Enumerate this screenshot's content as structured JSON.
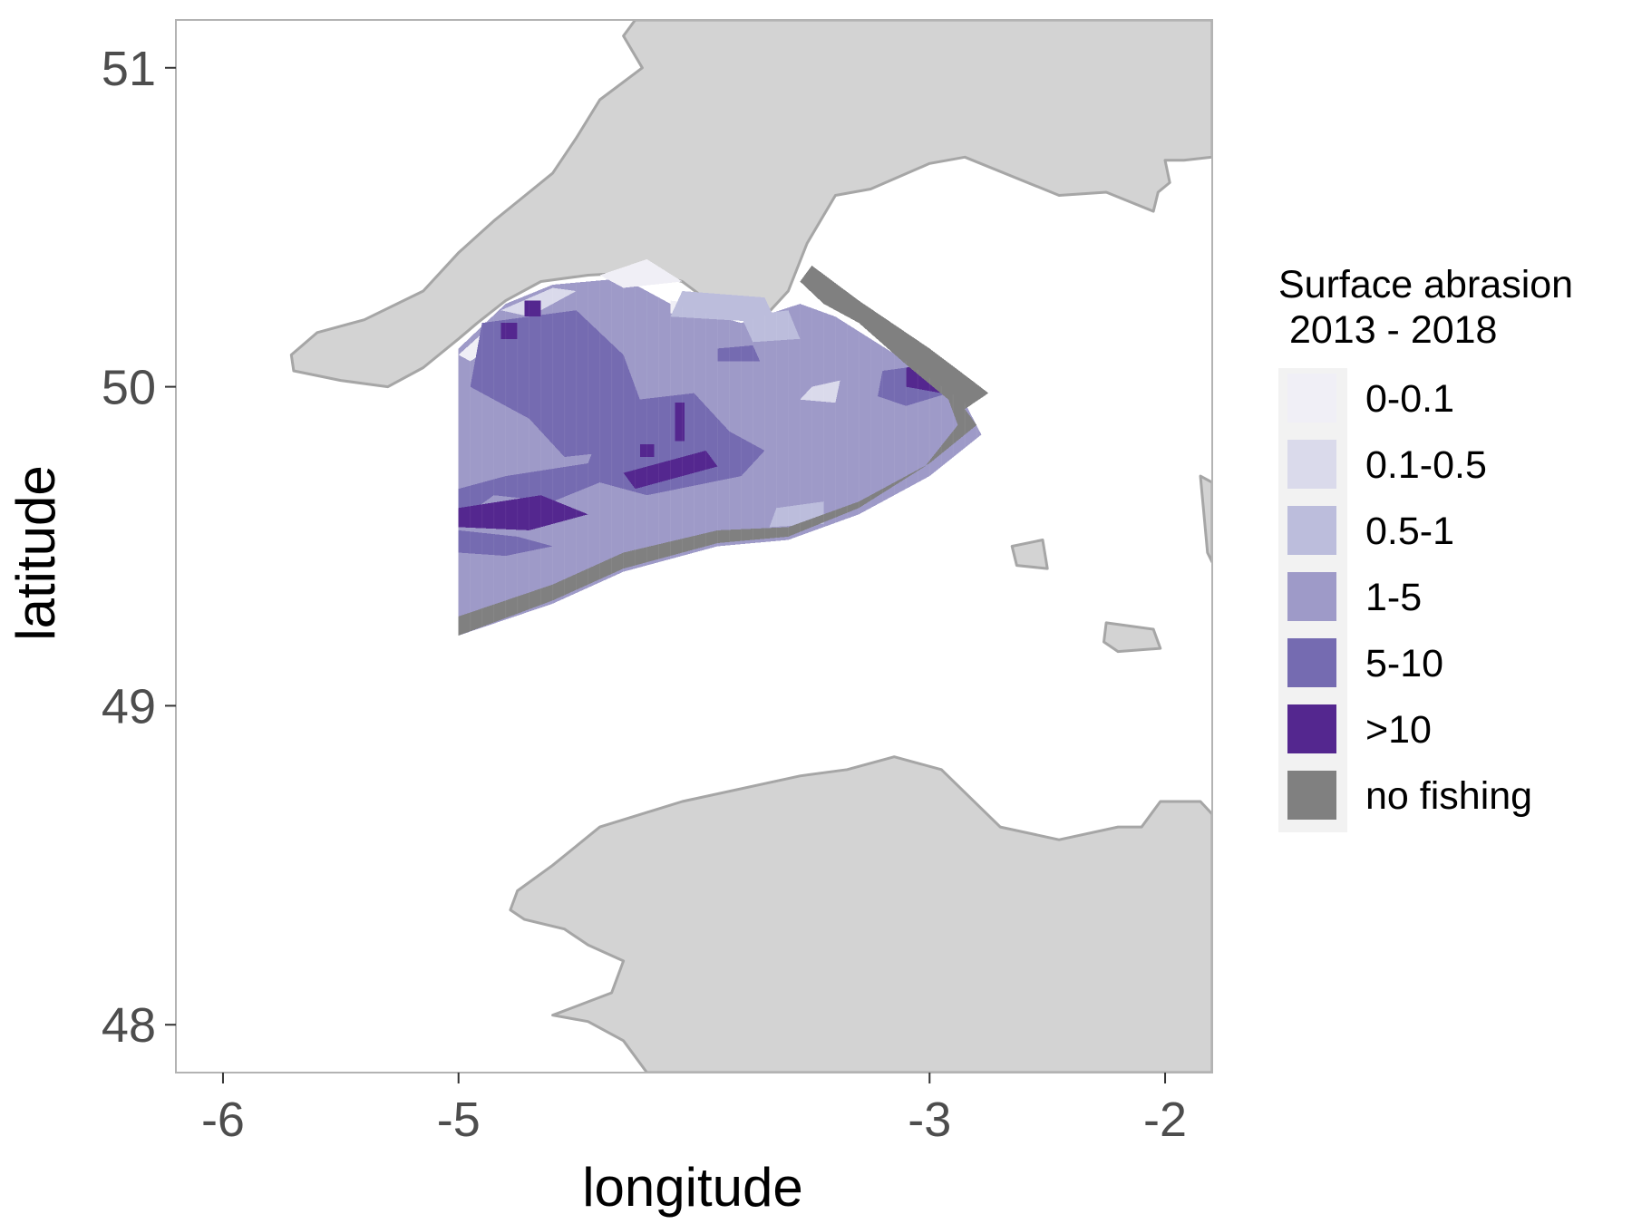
{
  "chart_data": {
    "type": "heatmap",
    "map": true,
    "xlabel": "longitude",
    "ylabel": "latitude",
    "xlim": [
      -6.2,
      -1.8
    ],
    "ylim": [
      47.85,
      51.15
    ],
    "x_ticks": [
      {
        "value": -6,
        "label": "-6"
      },
      {
        "value": -5,
        "label": "-5"
      },
      {
        "value": -3,
        "label": "-3"
      },
      {
        "value": -2,
        "label": "-2"
      }
    ],
    "y_ticks": [
      {
        "value": 51,
        "label": "51"
      },
      {
        "value": 50,
        "label": "50"
      },
      {
        "value": 49,
        "label": "49"
      },
      {
        "value": 48,
        "label": "48"
      }
    ],
    "grid": false,
    "land_color": "#d3d3d3",
    "coast_color": "#a6a6a6",
    "legend": {
      "position": "right",
      "title_line1": "Surface abrasion",
      "title_line2": " 2013 - 2018",
      "classes": [
        {
          "label": "0-0.1",
          "color": "#f0eff6"
        },
        {
          "label": "0.1-0.5",
          "color": "#dadaeb"
        },
        {
          "label": "0.5-1",
          "color": "#bcbddc"
        },
        {
          "label": "1-5",
          "color": "#9e9ac8"
        },
        {
          "label": "5-10",
          "color": "#756bb1"
        },
        {
          "label": ">10",
          "color": "#54278f"
        },
        {
          "label": "no fishing",
          "color": "#808080"
        }
      ]
    },
    "grid_cell": {
      "dlon": 0.05,
      "dlat": 0.05
    },
    "fishing_region": {
      "polygon": [
        [
          -5.0,
          50.12
        ],
        [
          -4.8,
          50.26
        ],
        [
          -4.6,
          50.32
        ],
        [
          -4.3,
          50.34
        ],
        [
          -4.1,
          50.26
        ],
        [
          -3.8,
          50.2
        ],
        [
          -3.55,
          50.26
        ],
        [
          -3.4,
          50.22
        ],
        [
          -3.1,
          50.08
        ],
        [
          -2.85,
          49.95
        ],
        [
          -2.78,
          49.85
        ],
        [
          -3.0,
          49.72
        ],
        [
          -3.3,
          49.6
        ],
        [
          -3.6,
          49.52
        ],
        [
          -3.9,
          49.5
        ],
        [
          -4.3,
          49.42
        ],
        [
          -4.6,
          49.32
        ],
        [
          -5.0,
          49.22
        ]
      ],
      "base_class": "1-5",
      "patches": [
        {
          "class": "0-0.1",
          "polygon": [
            [
              -4.4,
              50.35
            ],
            [
              -4.2,
              50.4
            ],
            [
              -4.05,
              50.33
            ],
            [
              -4.3,
              50.31
            ]
          ]
        },
        {
          "class": "0-0.1",
          "polygon": [
            [
              -4.1,
              50.27
            ],
            [
              -3.85,
              50.25
            ],
            [
              -3.9,
              50.22
            ],
            [
              -4.1,
              50.23
            ]
          ]
        },
        {
          "class": "0-0.1",
          "polygon": [
            [
              -5.0,
              50.1
            ],
            [
              -4.85,
              50.2
            ],
            [
              -4.8,
              50.15
            ],
            [
              -4.95,
              50.08
            ]
          ]
        },
        {
          "class": "0.1-0.5",
          "polygon": [
            [
              -4.82,
              50.24
            ],
            [
              -4.6,
              50.31
            ],
            [
              -4.5,
              50.3
            ],
            [
              -4.7,
              50.22
            ]
          ]
        },
        {
          "class": "0.1-0.5",
          "polygon": [
            [
              -3.5,
              50.0
            ],
            [
              -3.38,
              50.02
            ],
            [
              -3.4,
              49.95
            ],
            [
              -3.55,
              49.96
            ]
          ]
        },
        {
          "class": "0.5-1",
          "polygon": [
            [
              -4.05,
              50.3
            ],
            [
              -3.7,
              50.28
            ],
            [
              -3.65,
              50.2
            ],
            [
              -4.1,
              50.22
            ]
          ]
        },
        {
          "class": "0.5-1",
          "polygon": [
            [
              -3.8,
              50.22
            ],
            [
              -3.6,
              50.24
            ],
            [
              -3.55,
              50.15
            ],
            [
              -3.75,
              50.14
            ]
          ]
        },
        {
          "class": "0.5-1",
          "polygon": [
            [
              -3.65,
              49.62
            ],
            [
              -3.45,
              49.64
            ],
            [
              -3.45,
              49.57
            ],
            [
              -3.68,
              49.56
            ]
          ]
        },
        {
          "class": "5-10",
          "polygon": [
            [
              -4.9,
              50.2
            ],
            [
              -4.5,
              50.24
            ],
            [
              -4.3,
              50.1
            ],
            [
              -4.2,
              49.9
            ],
            [
              -4.3,
              49.8
            ],
            [
              -4.55,
              49.78
            ],
            [
              -4.7,
              49.9
            ],
            [
              -4.95,
              50.0
            ]
          ]
        },
        {
          "class": "5-10",
          "polygon": [
            [
              -4.35,
              49.95
            ],
            [
              -4.0,
              49.98
            ],
            [
              -3.85,
              49.86
            ],
            [
              -3.7,
              49.8
            ],
            [
              -3.8,
              49.72
            ],
            [
              -4.2,
              49.66
            ],
            [
              -4.4,
              49.7
            ],
            [
              -4.6,
              49.64
            ],
            [
              -4.85,
              49.66
            ],
            [
              -5.0,
              49.58
            ],
            [
              -5.0,
              49.68
            ],
            [
              -4.8,
              49.72
            ],
            [
              -4.45,
              49.76
            ]
          ]
        },
        {
          "class": "5-10",
          "polygon": [
            [
              -5.0,
              49.55
            ],
            [
              -4.75,
              49.53
            ],
            [
              -4.6,
              49.5
            ],
            [
              -4.8,
              49.47
            ],
            [
              -5.0,
              49.48
            ]
          ]
        },
        {
          "class": "5-10",
          "polygon": [
            [
              -3.2,
              50.05
            ],
            [
              -3.0,
              50.07
            ],
            [
              -2.92,
              49.98
            ],
            [
              -3.1,
              49.94
            ],
            [
              -3.22,
              49.97
            ]
          ]
        },
        {
          "class": "5-10",
          "polygon": [
            [
              -3.9,
              50.12
            ],
            [
              -3.75,
              50.13
            ],
            [
              -3.72,
              50.08
            ],
            [
              -3.9,
              50.08
            ]
          ]
        },
        {
          "class": ">10",
          "polygon": [
            [
              -5.0,
              49.62
            ],
            [
              -4.65,
              49.66
            ],
            [
              -4.45,
              49.6
            ],
            [
              -4.7,
              49.55
            ],
            [
              -5.0,
              49.56
            ]
          ]
        },
        {
          "class": ">10",
          "polygon": [
            [
              -4.3,
              49.73
            ],
            [
              -3.95,
              49.8
            ],
            [
              -3.9,
              49.75
            ],
            [
              -4.25,
              49.68
            ]
          ]
        },
        {
          "class": ">10",
          "polygon": [
            [
              -4.08,
              49.95
            ],
            [
              -4.04,
              49.95
            ],
            [
              -4.04,
              49.83
            ],
            [
              -4.08,
              49.83
            ]
          ]
        },
        {
          "class": ">10",
          "polygon": [
            [
              -4.23,
              49.82
            ],
            [
              -4.17,
              49.82
            ],
            [
              -4.17,
              49.78
            ],
            [
              -4.23,
              49.78
            ]
          ]
        },
        {
          "class": ">10",
          "polygon": [
            [
              -4.82,
              50.2
            ],
            [
              -4.75,
              50.2
            ],
            [
              -4.75,
              50.15
            ],
            [
              -4.82,
              50.15
            ]
          ]
        },
        {
          "class": ">10",
          "polygon": [
            [
              -4.72,
              50.27
            ],
            [
              -4.65,
              50.27
            ],
            [
              -4.65,
              50.22
            ],
            [
              -4.72,
              50.22
            ]
          ]
        },
        {
          "class": ">10",
          "polygon": [
            [
              -3.1,
              50.06
            ],
            [
              -2.95,
              50.08
            ],
            [
              -2.85,
              50.02
            ],
            [
              -2.95,
              49.98
            ],
            [
              -3.1,
              50.0
            ]
          ]
        },
        {
          "class": "no fishing",
          "polygon": [
            [
              -5.0,
              49.28
            ],
            [
              -4.6,
              49.38
            ],
            [
              -4.3,
              49.48
            ],
            [
              -3.9,
              49.55
            ],
            [
              -3.6,
              49.56
            ],
            [
              -3.3,
              49.64
            ],
            [
              -3.0,
              49.76
            ],
            [
              -2.8,
              49.88
            ],
            [
              -2.85,
              49.93
            ],
            [
              -2.75,
              49.98
            ],
            [
              -2.82,
              50.02
            ],
            [
              -3.0,
              50.12
            ],
            [
              -3.3,
              50.27
            ],
            [
              -3.5,
              50.38
            ],
            [
              -3.55,
              50.33
            ],
            [
              -3.45,
              50.26
            ],
            [
              -3.3,
              50.2
            ],
            [
              -3.1,
              50.07
            ],
            [
              -2.92,
              49.96
            ],
            [
              -2.88,
              49.88
            ],
            [
              -3.02,
              49.75
            ],
            [
              -3.3,
              49.62
            ],
            [
              -3.6,
              49.53
            ],
            [
              -3.9,
              49.51
            ],
            [
              -4.3,
              49.43
            ],
            [
              -4.6,
              49.33
            ],
            [
              -5.0,
              49.22
            ]
          ]
        }
      ]
    },
    "land": [
      {
        "name": "england",
        "polygon": [
          [
            -4.25,
            51.15
          ],
          [
            -1.8,
            51.15
          ],
          [
            -1.8,
            50.72
          ],
          [
            -1.92,
            50.71
          ],
          [
            -2.0,
            50.71
          ],
          [
            -1.98,
            50.64
          ],
          [
            -2.03,
            50.61
          ],
          [
            -2.05,
            50.55
          ],
          [
            -2.25,
            50.61
          ],
          [
            -2.45,
            50.6
          ],
          [
            -2.85,
            50.72
          ],
          [
            -3.0,
            50.7
          ],
          [
            -3.25,
            50.62
          ],
          [
            -3.4,
            50.6
          ],
          [
            -3.52,
            50.45
          ],
          [
            -3.6,
            50.3
          ],
          [
            -3.7,
            50.22
          ],
          [
            -3.85,
            50.22
          ],
          [
            -4.05,
            50.33
          ],
          [
            -4.2,
            50.36
          ],
          [
            -4.45,
            50.35
          ],
          [
            -4.65,
            50.33
          ],
          [
            -4.8,
            50.27
          ],
          [
            -4.92,
            50.2
          ],
          [
            -5.0,
            50.15
          ],
          [
            -5.15,
            50.06
          ],
          [
            -5.3,
            50.0
          ],
          [
            -5.5,
            50.02
          ],
          [
            -5.7,
            50.05
          ],
          [
            -5.71,
            50.1
          ],
          [
            -5.6,
            50.17
          ],
          [
            -5.4,
            50.21
          ],
          [
            -5.15,
            50.3
          ],
          [
            -5.0,
            50.42
          ],
          [
            -4.85,
            50.52
          ],
          [
            -4.75,
            50.58
          ],
          [
            -4.6,
            50.67
          ],
          [
            -4.5,
            50.78
          ],
          [
            -4.4,
            50.9
          ],
          [
            -4.22,
            51.0
          ],
          [
            -4.3,
            51.1
          ]
        ]
      },
      {
        "name": "brittany",
        "polygon": [
          [
            -4.75,
            48.42
          ],
          [
            -4.6,
            48.5
          ],
          [
            -4.4,
            48.62
          ],
          [
            -4.05,
            48.7
          ],
          [
            -3.55,
            48.78
          ],
          [
            -3.35,
            48.8
          ],
          [
            -3.15,
            48.84
          ],
          [
            -2.95,
            48.8
          ],
          [
            -2.7,
            48.62
          ],
          [
            -2.45,
            48.58
          ],
          [
            -2.2,
            48.62
          ],
          [
            -2.1,
            48.62
          ],
          [
            -2.02,
            48.7
          ],
          [
            -1.85,
            48.7
          ],
          [
            -1.8,
            48.66
          ],
          [
            -1.8,
            47.85
          ],
          [
            -4.2,
            47.85
          ],
          [
            -4.3,
            47.95
          ],
          [
            -4.45,
            48.01
          ],
          [
            -4.6,
            48.03
          ],
          [
            -4.35,
            48.1
          ],
          [
            -4.3,
            48.2
          ],
          [
            -4.45,
            48.25
          ],
          [
            -4.55,
            48.3
          ],
          [
            -4.72,
            48.33
          ],
          [
            -4.78,
            48.36
          ]
        ]
      },
      {
        "name": "cotentin",
        "polygon": [
          [
            -1.8,
            49.7
          ],
          [
            -1.85,
            49.72
          ],
          [
            -1.82,
            49.48
          ],
          [
            -1.8,
            49.45
          ]
        ]
      },
      {
        "name": "guernsey",
        "polygon": [
          [
            -2.65,
            49.5
          ],
          [
            -2.52,
            49.52
          ],
          [
            -2.5,
            49.43
          ],
          [
            -2.63,
            49.44
          ]
        ]
      },
      {
        "name": "jersey",
        "polygon": [
          [
            -2.25,
            49.26
          ],
          [
            -2.05,
            49.24
          ],
          [
            -2.02,
            49.18
          ],
          [
            -2.2,
            49.17
          ],
          [
            -2.26,
            49.2
          ]
        ]
      }
    ]
  }
}
